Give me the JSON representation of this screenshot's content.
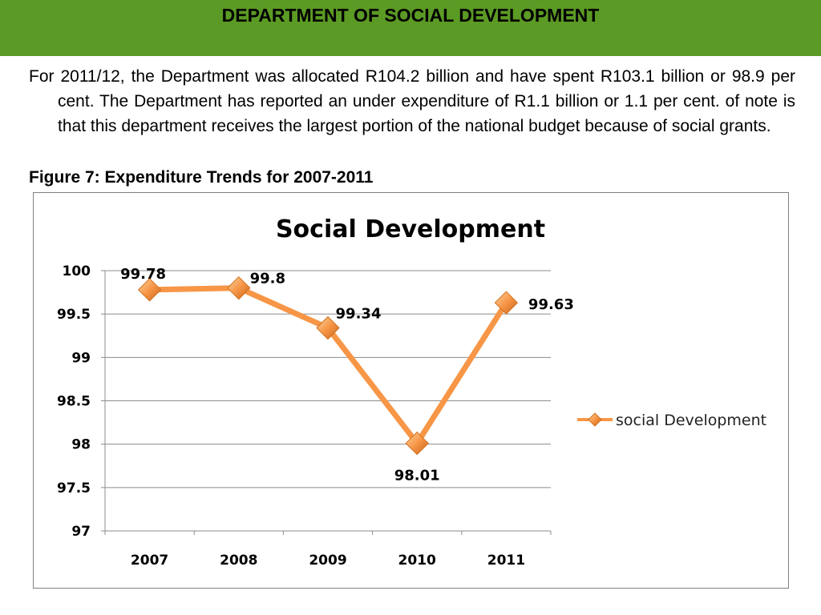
{
  "header": {
    "title": "DEPARTMENT OF SOCIAL DEVELOPMENT",
    "bg_color": "#5b9a24"
  },
  "body": {
    "paragraph": "For 2011/12, the Department was allocated R104.2 billion and have spent R103.1 billion or 98.9 per cent. The Department has reported an under expenditure of R1.1 billion or 1.1 per cent. of note is that this department receives the largest portion of the national budget because of social grants.",
    "figure_caption": "Figure 7: Expenditure Trends for 2007-2011"
  },
  "chart_data": {
    "type": "line",
    "title": "Social Development",
    "categories": [
      "2007",
      "2008",
      "2009",
      "2010",
      "2011"
    ],
    "series": [
      {
        "name": "social Development",
        "values": [
          99.78,
          99.8,
          99.34,
          98.01,
          99.63
        ],
        "labels": [
          "99.78",
          "99.8",
          "99.34",
          "98.01",
          "99.63"
        ],
        "color": "#f79646"
      }
    ],
    "ylim": [
      97,
      100
    ],
    "yticks": [
      "97",
      "97.5",
      "98",
      "98.5",
      "99",
      "99.5",
      "100"
    ],
    "grid": true,
    "legend": "right"
  }
}
